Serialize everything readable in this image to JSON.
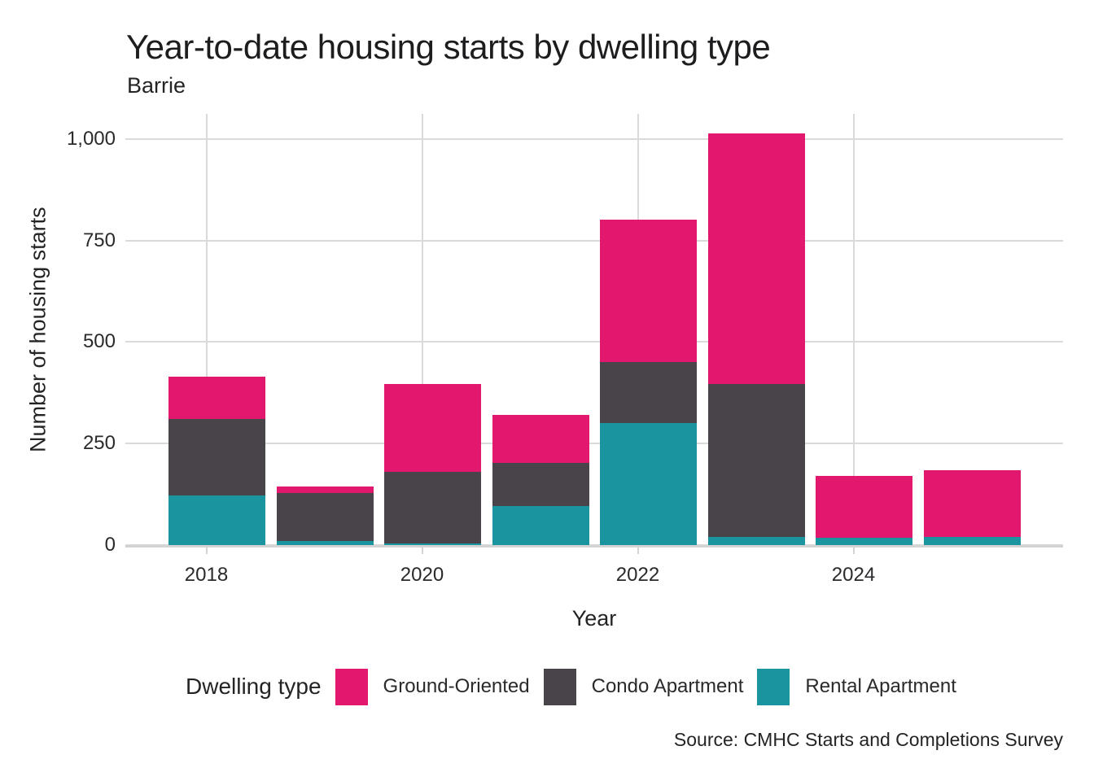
{
  "title": "Year-to-date housing starts by dwelling type",
  "subtitle": "Barrie",
  "source": "Source: CMHC Starts and Completions Survey",
  "legend": {
    "title": "Dwelling type",
    "items": [
      {
        "label": "Ground-Oriented",
        "color": "#E2186E"
      },
      {
        "label": "Condo Apartment",
        "color": "#48444A"
      },
      {
        "label": "Rental Apartment",
        "color": "#1A95A0"
      }
    ]
  },
  "colors": {
    "background": "#FFFFFF",
    "gridline": "#DADADA",
    "axis_line": "#D3D3D3",
    "title_text": "#1D1C1E",
    "body_text": "#2A292C"
  },
  "chart_data": {
    "type": "bar",
    "stacked": true,
    "title": "Year-to-date housing starts by dwelling type",
    "subtitle": "Barrie",
    "xlabel": "Year",
    "ylabel": "Number of housing starts",
    "categories": [
      2018,
      2019,
      2020,
      2021,
      2022,
      2023,
      2024,
      2025
    ],
    "series": [
      {
        "name": "Ground-Oriented",
        "color": "#E2186E",
        "values": [
          104,
          17,
          217,
          118,
          352,
          616,
          151,
          165
        ]
      },
      {
        "name": "Condo Apartment",
        "color": "#48444A",
        "values": [
          189,
          118,
          175,
          106,
          150,
          377,
          0,
          0
        ]
      },
      {
        "name": "Rental Apartment",
        "color": "#1A95A0",
        "values": [
          122,
          10,
          5,
          96,
          300,
          20,
          19,
          20
        ]
      }
    ],
    "stack_order_bottom_to_top": [
      "Rental Apartment",
      "Condo Apartment",
      "Ground-Oriented"
    ],
    "totals": [
      415,
      145,
      397,
      320,
      802,
      1013,
      170,
      185
    ],
    "ylim": [
      0,
      1062
    ],
    "y_ticks": [
      {
        "value": 0,
        "label": "0"
      },
      {
        "value": 250,
        "label": "250"
      },
      {
        "value": 500,
        "label": "500"
      },
      {
        "value": 750,
        "label": "750"
      },
      {
        "value": 1000,
        "label": "1,000"
      }
    ],
    "x_ticks": [
      {
        "value": 2018,
        "label": "2018"
      },
      {
        "value": 2020,
        "label": "2020"
      },
      {
        "value": 2022,
        "label": "2022"
      },
      {
        "value": 2024,
        "label": "2024"
      }
    ],
    "grid": "major-only",
    "legend_position": "bottom-left"
  }
}
